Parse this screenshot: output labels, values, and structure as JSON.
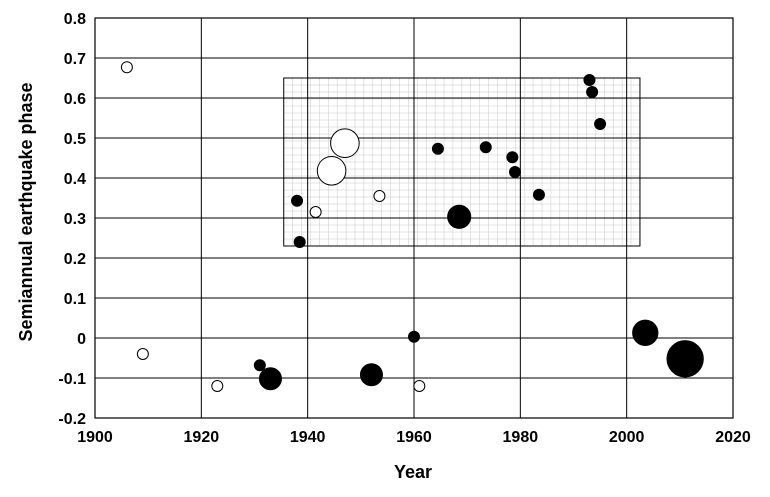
{
  "chart_data": {
    "type": "scatter",
    "title": "",
    "xlabel": "Year",
    "ylabel": "Semiannual earthquake phase",
    "xlim": [
      1900,
      2020
    ],
    "ylim": [
      -0.2,
      0.8
    ],
    "xticks": [
      1900,
      1920,
      1940,
      1960,
      1980,
      2000,
      2020
    ],
    "yticks": [
      -0.2,
      -0.1,
      0,
      0.1,
      0.2,
      0.3,
      0.4,
      0.5,
      0.6,
      0.7,
      0.8
    ],
    "ytick_labels": [
      "-0.2",
      "-0.1",
      "0",
      "0.1",
      "0.2",
      "0.3",
      "0.4",
      "0.5",
      "0.6",
      "0.7",
      "0.8"
    ],
    "grid": true,
    "highlight_box": {
      "x": [
        1935.5,
        2002.5
      ],
      "y": [
        0.23,
        0.65
      ]
    },
    "colors": {
      "filled": "#000000",
      "open_fill": "#ffffff",
      "stroke": "#000000",
      "grid": "#000000",
      "highlight_grid": "#c8c8c8"
    },
    "points": [
      {
        "x": 1906,
        "y": 0.677,
        "size": 1,
        "filled": false
      },
      {
        "x": 1909,
        "y": -0.04,
        "size": 1,
        "filled": false
      },
      {
        "x": 1923,
        "y": -0.12,
        "size": 1,
        "filled": false
      },
      {
        "x": 1931,
        "y": -0.068,
        "size": 1,
        "filled": true
      },
      {
        "x": 1933,
        "y": -0.102,
        "size": 2,
        "filled": true
      },
      {
        "x": 1938,
        "y": 0.343,
        "size": 1,
        "filled": true
      },
      {
        "x": 1938.5,
        "y": 0.24,
        "size": 1,
        "filled": true
      },
      {
        "x": 1941.5,
        "y": 0.315,
        "size": 1,
        "filled": false
      },
      {
        "x": 1944.5,
        "y": 0.418,
        "size": 2.6,
        "filled": false
      },
      {
        "x": 1947,
        "y": 0.487,
        "size": 2.6,
        "filled": false
      },
      {
        "x": 1952,
        "y": -0.092,
        "size": 2,
        "filled": true
      },
      {
        "x": 1953.5,
        "y": 0.355,
        "size": 1,
        "filled": false
      },
      {
        "x": 1960,
        "y": 0.003,
        "size": 1,
        "filled": true
      },
      {
        "x": 1961,
        "y": -0.12,
        "size": 1,
        "filled": false
      },
      {
        "x": 1964.5,
        "y": 0.473,
        "size": 1,
        "filled": true
      },
      {
        "x": 1968.5,
        "y": 0.303,
        "size": 2.1,
        "filled": true
      },
      {
        "x": 1973.5,
        "y": 0.477,
        "size": 1,
        "filled": true
      },
      {
        "x": 1978.5,
        "y": 0.452,
        "size": 1,
        "filled": true
      },
      {
        "x": 1979,
        "y": 0.415,
        "size": 1,
        "filled": true
      },
      {
        "x": 1983.5,
        "y": 0.358,
        "size": 1,
        "filled": true
      },
      {
        "x": 1993,
        "y": 0.645,
        "size": 1,
        "filled": true
      },
      {
        "x": 1993.5,
        "y": 0.615,
        "size": 1,
        "filled": true
      },
      {
        "x": 1995,
        "y": 0.535,
        "size": 1,
        "filled": true
      },
      {
        "x": 2003.5,
        "y": 0.013,
        "size": 2.3,
        "filled": true
      },
      {
        "x": 2011,
        "y": -0.052,
        "size": 3.3,
        "filled": true
      }
    ]
  }
}
